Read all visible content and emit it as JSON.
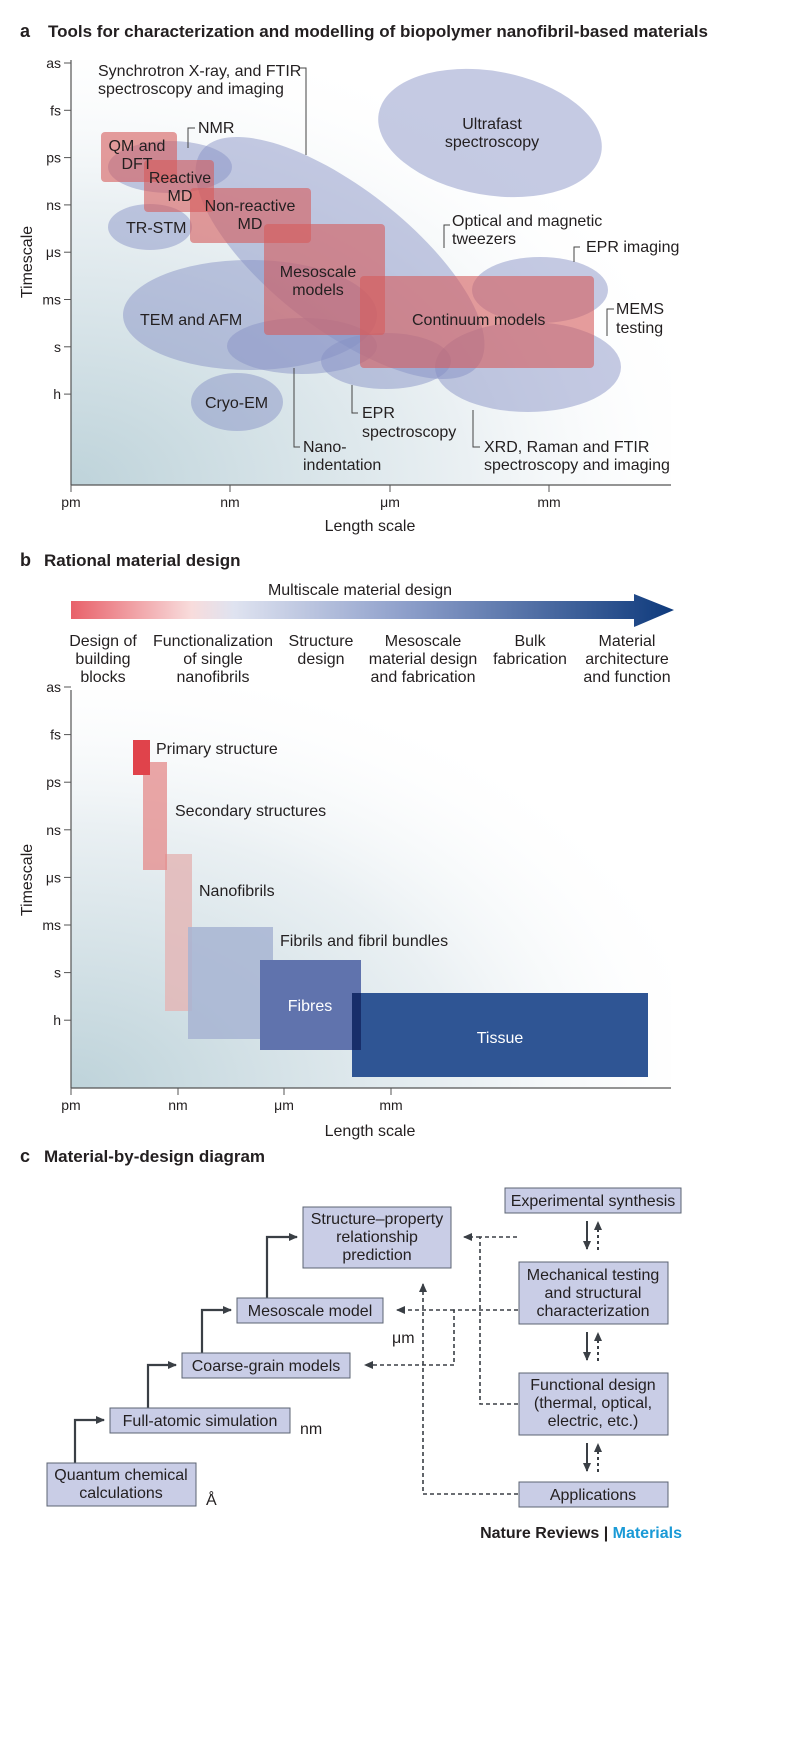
{
  "panel_a": {
    "letter": "a",
    "title": "Tools for characterization and modelling of biopolymer nanofibril-based materials",
    "y_ticks": [
      "as",
      "fs",
      "ps",
      "ns",
      "μs",
      "ms",
      "s",
      "h"
    ],
    "x_ticks": [
      "pm",
      "nm",
      "μm",
      "mm"
    ],
    "xlabel": "Length scale",
    "ylabel": "Timescale",
    "labels": {
      "synchrotron": [
        "Synchrotron X-ray, and FTIR",
        "spectroscopy and imaging"
      ],
      "nmr": "NMR",
      "qm": [
        "QM and",
        "DFT"
      ],
      "reactive": [
        "Reactive",
        "MD"
      ],
      "nonreactive": [
        "Non-reactive",
        "MD"
      ],
      "trstm": "TR-STM",
      "ultrafast": [
        "Ultrafast",
        "spectroscopy"
      ],
      "tweezers": [
        "Optical and magnetic",
        "tweezers"
      ],
      "epr_imaging": "EPR imaging",
      "mesoscale": [
        "Mesoscale",
        "models"
      ],
      "tem": "TEM and AFM",
      "continuum": "Continuum models",
      "mems": [
        "MEMS",
        "testing"
      ],
      "cryo": "Cryo-EM",
      "epr_spec": [
        "EPR",
        "spectroscopy"
      ],
      "nano": [
        "Nano-",
        "indentation"
      ],
      "xrd": [
        "XRD, Raman and FTIR",
        "spectroscopy and imaging"
      ]
    }
  },
  "panel_b": {
    "letter": "b",
    "title": "Rational material design",
    "arrow_label": "Multiscale material design",
    "stages": [
      [
        "Design of",
        "building",
        "blocks"
      ],
      [
        "Functionalization",
        "of single",
        "nanofibrils"
      ],
      [
        "Structure",
        "design"
      ],
      [
        "Mesoscale",
        "material design",
        "and fabrication"
      ],
      [
        "Bulk",
        "fabrication"
      ],
      [
        "Material",
        "architecture",
        "and function"
      ]
    ],
    "y_ticks": [
      "as",
      "fs",
      "ps",
      "ns",
      "μs",
      "ms",
      "s",
      "h"
    ],
    "x_ticks": [
      "pm",
      "nm",
      "μm",
      "mm"
    ],
    "xlabel": "Length scale",
    "ylabel": "Timescale",
    "structures": {
      "primary": "Primary structure",
      "secondary": "Secondary structures",
      "nanofibrils": "Nanofibrils",
      "fibrils": "Fibrils and fibril bundles",
      "fibres": "Fibres",
      "tissue": "Tissue"
    }
  },
  "panel_c": {
    "letter": "c",
    "title": "Material-by-design diagram",
    "boxes": {
      "quantum": [
        "Quantum chemical",
        "calculations"
      ],
      "full_atomic": "Full-atomic simulation",
      "coarse": "Coarse-grain models",
      "mesoscale": "Mesoscale model",
      "structure_prop": [
        "Structure–property",
        "relationship",
        "prediction"
      ],
      "exp_synth": "Experimental synthesis",
      "mech_test": [
        "Mechanical testing",
        "and structural",
        "characterization"
      ],
      "functional": [
        "Functional design",
        "(thermal, optical,",
        "electric, etc.)"
      ],
      "applications": "Applications"
    },
    "scale_labels": {
      "angstrom": "Å",
      "nm": "nm",
      "um": "μm"
    }
  },
  "footer": {
    "journal": "Nature Reviews",
    "separator": " | ",
    "section": "Materials"
  },
  "colors": {
    "blue_ellipse": "#8a97c8",
    "red_rect": "#d9696a",
    "dark_blue": "#1d4483",
    "accent": "#1a9ad6"
  }
}
